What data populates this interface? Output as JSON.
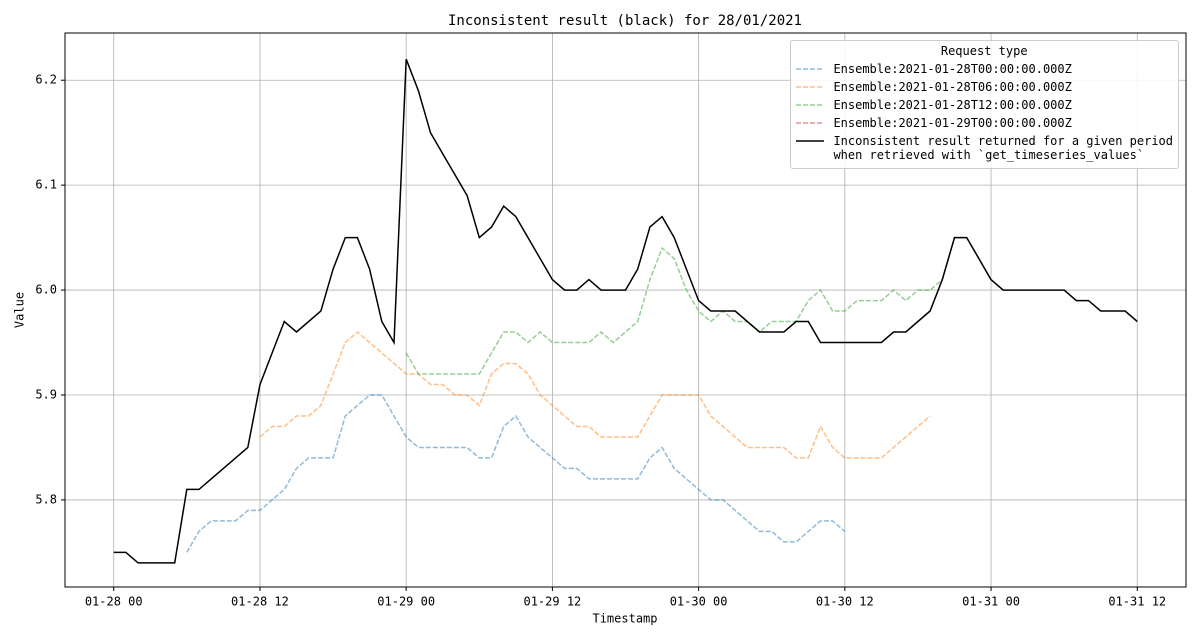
{
  "chart_data": {
    "type": "line",
    "title": "Inconsistent result (black) for 28/01/2021",
    "xlabel": "Timestamp",
    "ylabel": "Value",
    "x": [
      "01-28 00",
      "01-28 01",
      "01-28 02",
      "01-28 03",
      "01-28 04",
      "01-28 05",
      "01-28 06",
      "01-28 07",
      "01-28 08",
      "01-28 09",
      "01-28 10",
      "01-28 11",
      "01-28 12",
      "01-28 13",
      "01-28 14",
      "01-28 15",
      "01-28 16",
      "01-28 17",
      "01-28 18",
      "01-28 19",
      "01-28 20",
      "01-28 21",
      "01-28 22",
      "01-28 23",
      "01-29 00",
      "01-29 01",
      "01-29 02",
      "01-29 03",
      "01-29 04",
      "01-29 05",
      "01-29 06",
      "01-29 07",
      "01-29 08",
      "01-29 09",
      "01-29 10",
      "01-29 11",
      "01-29 12",
      "01-29 13",
      "01-29 14",
      "01-29 15",
      "01-29 16",
      "01-29 17",
      "01-29 18",
      "01-29 19",
      "01-29 20",
      "01-29 21",
      "01-29 22",
      "01-29 23",
      "01-30 00",
      "01-30 01",
      "01-30 02",
      "01-30 03",
      "01-30 04",
      "01-30 05",
      "01-30 06",
      "01-30 07",
      "01-30 08",
      "01-30 09",
      "01-30 10",
      "01-30 11",
      "01-30 12",
      "01-30 13",
      "01-30 14",
      "01-30 15",
      "01-30 16",
      "01-30 17",
      "01-30 18",
      "01-30 19",
      "01-30 20",
      "01-30 21",
      "01-30 22",
      "01-30 23",
      "01-31 00",
      "01-31 01",
      "01-31 02",
      "01-31 03",
      "01-31 04",
      "01-31 05",
      "01-31 06",
      "01-31 07",
      "01-31 08",
      "01-31 09",
      "01-31 10",
      "01-31 11",
      "01-31 12"
    ],
    "series": [
      {
        "name": "Ensemble:2021-01-28T00:00:00.000Z",
        "color": "#1f77b4",
        "alpha": 0.5,
        "linestyle": "dashed",
        "values": [
          null,
          null,
          null,
          null,
          null,
          null,
          5.75,
          5.77,
          5.78,
          5.78,
          5.78,
          5.79,
          5.79,
          5.8,
          5.81,
          5.83,
          5.84,
          5.84,
          5.84,
          5.88,
          5.89,
          5.9,
          5.9,
          5.88,
          5.86,
          5.85,
          5.85,
          5.85,
          5.85,
          5.85,
          5.84,
          5.84,
          5.87,
          5.88,
          5.86,
          5.85,
          5.84,
          5.83,
          5.83,
          5.82,
          5.82,
          5.82,
          5.82,
          5.82,
          5.84,
          5.85,
          5.83,
          5.82,
          5.81,
          5.8,
          5.8,
          5.79,
          5.78,
          5.77,
          5.77,
          5.76,
          5.76,
          5.77,
          5.78,
          5.78,
          5.77,
          null,
          null,
          null,
          null,
          null,
          null,
          null,
          null,
          null,
          null,
          null,
          null,
          null,
          null,
          null,
          null,
          null,
          null,
          null,
          null,
          null,
          null,
          null,
          null
        ]
      },
      {
        "name": "Ensemble:2021-01-28T06:00:00.000Z",
        "color": "#ff7f0e",
        "alpha": 0.5,
        "linestyle": "dashed",
        "values": [
          null,
          null,
          null,
          null,
          null,
          null,
          null,
          null,
          null,
          null,
          null,
          null,
          5.86,
          5.87,
          5.87,
          5.88,
          5.88,
          5.89,
          5.92,
          5.95,
          5.96,
          5.95,
          5.94,
          5.93,
          5.92,
          5.92,
          5.91,
          5.91,
          5.9,
          5.9,
          5.89,
          5.92,
          5.93,
          5.93,
          5.92,
          5.9,
          5.89,
          5.88,
          5.87,
          5.87,
          5.86,
          5.86,
          5.86,
          5.86,
          5.88,
          5.9,
          5.9,
          5.9,
          5.9,
          5.88,
          5.87,
          5.86,
          5.85,
          5.85,
          5.85,
          5.85,
          5.84,
          5.84,
          5.87,
          5.85,
          5.84,
          5.84,
          5.84,
          5.84,
          5.85,
          5.86,
          5.87,
          5.88,
          null,
          null,
          null,
          null,
          null,
          null,
          null,
          null,
          null,
          null,
          null,
          null,
          null,
          null,
          null,
          null,
          null
        ]
      },
      {
        "name": "Ensemble:2021-01-28T12:00:00.000Z",
        "color": "#2ca02c",
        "alpha": 0.5,
        "linestyle": "dashed",
        "values": [
          null,
          null,
          null,
          null,
          null,
          null,
          null,
          null,
          null,
          null,
          null,
          null,
          null,
          null,
          null,
          null,
          null,
          null,
          null,
          null,
          null,
          null,
          null,
          null,
          5.94,
          5.92,
          5.92,
          5.92,
          5.92,
          5.92,
          5.92,
          5.94,
          5.96,
          5.96,
          5.95,
          5.96,
          5.95,
          5.95,
          5.95,
          5.95,
          5.96,
          5.95,
          5.96,
          5.97,
          6.01,
          6.04,
          6.03,
          6.0,
          5.98,
          5.97,
          5.98,
          5.97,
          5.97,
          5.96,
          5.97,
          5.97,
          5.97,
          5.99,
          6.0,
          5.98,
          5.98,
          5.99,
          5.99,
          5.99,
          6.0,
          5.99,
          6.0,
          6.0,
          6.01,
          6.05,
          6.05,
          6.03,
          6.01,
          null,
          null,
          null,
          null,
          null,
          null,
          null,
          null,
          null,
          null,
          null,
          null
        ]
      },
      {
        "name": "Ensemble:2021-01-29T00:00:00.000Z",
        "color": "#d62728",
        "alpha": 0.5,
        "linestyle": "dashed",
        "values": [
          null,
          null,
          null,
          null,
          null,
          null,
          null,
          null,
          null,
          null,
          null,
          null,
          null,
          null,
          null,
          null,
          null,
          null,
          null,
          null,
          null,
          null,
          null,
          null,
          null,
          null,
          null,
          null,
          null,
          null,
          null,
          null,
          null,
          null,
          null,
          null,
          null,
          null,
          null,
          null,
          null,
          null,
          null,
          null,
          null,
          null,
          null,
          null,
          null,
          null,
          null,
          null,
          null,
          null,
          null,
          null,
          null,
          null,
          null,
          null,
          null,
          null,
          null,
          null,
          null,
          null,
          null,
          null,
          null,
          null,
          null,
          null,
          null,
          null,
          null,
          null,
          null,
          null,
          null,
          null,
          null,
          null,
          null,
          null,
          null
        ]
      },
      {
        "name": "Inconsistent result returned for a given period\nwhen retrieved with `get_timeseries_values`",
        "color": "#000000",
        "alpha": 1,
        "linestyle": "solid",
        "values": [
          5.75,
          5.75,
          5.74,
          5.74,
          5.74,
          5.74,
          5.81,
          5.81,
          5.82,
          5.83,
          5.84,
          5.85,
          5.91,
          5.94,
          5.97,
          5.96,
          5.97,
          5.98,
          6.02,
          6.05,
          6.05,
          6.02,
          5.97,
          5.95,
          6.22,
          6.19,
          6.15,
          6.13,
          6.11,
          6.09,
          6.05,
          6.06,
          6.08,
          6.07,
          6.05,
          6.03,
          6.01,
          6.0,
          6.0,
          6.01,
          6.0,
          6.0,
          6.0,
          6.02,
          6.06,
          6.07,
          6.05,
          6.02,
          5.99,
          5.98,
          5.98,
          5.98,
          5.97,
          5.96,
          5.96,
          5.96,
          5.97,
          5.97,
          5.95,
          5.95,
          5.95,
          5.95,
          5.95,
          5.95,
          5.96,
          5.96,
          5.97,
          5.98,
          6.01,
          6.05,
          6.05,
          6.03,
          6.01,
          6.0,
          6.0,
          6.0,
          6.0,
          6.0,
          6.0,
          5.99,
          5.99,
          5.98,
          5.98,
          5.98,
          5.97
        ]
      }
    ],
    "legend_title": "Request type",
    "legend_position": "upper right",
    "xlim": [
      "01-27 20",
      "01-31 16"
    ],
    "xticks": [
      "01-28 00",
      "01-28 12",
      "01-29 00",
      "01-29 12",
      "01-30 00",
      "01-30 12",
      "01-31 00",
      "01-31 12"
    ],
    "ylim": [
      5.717,
      6.245
    ],
    "yticks": [
      5.8,
      5.9,
      {
        "value": 6.0,
        "label": "6.0"
      },
      6.1,
      6.2
    ],
    "grid": true
  }
}
